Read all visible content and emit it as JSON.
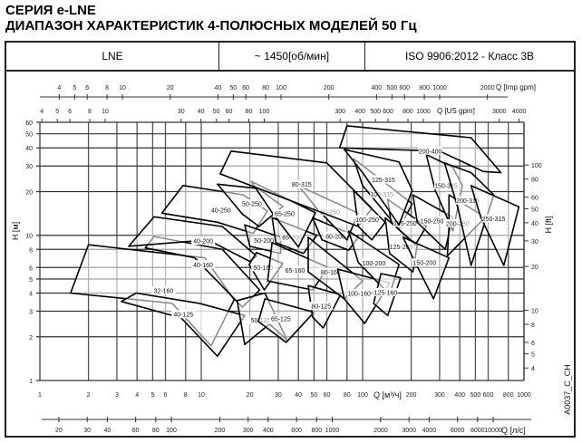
{
  "title_line1": "СЕРИЯ e-LNE",
  "title_line2": "ДИАПАЗОН ХАРАКТЕРИСТИК 4-ПОЛЮСНЫХ МОДЕЛЕЙ 50 Гц",
  "header": {
    "series": "LNE",
    "speed": "~ 1450[об/мин]",
    "standard": "ISO 9906:2012 - Класс 3B"
  },
  "chart_data": {
    "type": "area",
    "x_scale": "log",
    "y_scale": "log",
    "xlabel": "Q [м³/ч]",
    "ylabel": "H [м]",
    "y2label": "H [ft]",
    "xlim": [
      1,
      1000
    ],
    "ylim": [
      1,
      60
    ],
    "grid": true,
    "x_ticks": [
      1,
      2,
      3,
      4,
      5,
      6,
      8,
      10,
      20,
      30,
      40,
      50,
      60,
      80,
      100,
      200,
      300,
      400,
      500,
      600,
      800,
      1000
    ],
    "y_ticks": [
      1,
      2,
      3,
      4,
      5,
      6,
      8,
      10,
      20,
      30,
      40,
      50,
      60
    ],
    "y2_ticks": [
      4,
      5,
      6,
      8,
      10,
      20,
      30,
      40,
      50,
      60,
      80,
      100
    ],
    "top_axis_imp": {
      "label": "Q [Imp gpm]",
      "ticks": [
        4,
        5,
        6,
        8,
        10,
        20,
        40,
        50,
        60,
        80,
        100,
        200,
        400,
        500,
        600,
        800,
        1000,
        2000
      ]
    },
    "top_axis_us": {
      "label": "Q [US gpm]",
      "ticks": [
        4,
        5,
        6,
        8,
        10,
        30,
        40,
        50,
        60,
        80,
        100,
        300,
        400,
        500,
        600,
        800,
        1000,
        3000,
        4000
      ]
    },
    "bottom_axis_ls": {
      "label": "Q [л/с]",
      "ticks": [
        20,
        30,
        40,
        60,
        80,
        100,
        200,
        300,
        400,
        600,
        800,
        1000,
        2000,
        3000,
        4000,
        6000,
        8000,
        10000
      ]
    },
    "code": "A0037_C_CH",
    "models": [
      {
        "label": "32-160",
        "outline": [
          [
            2,
            8.6
          ],
          [
            10.5,
            7
          ],
          [
            16,
            3.6
          ],
          [
            11.5,
            1.73
          ],
          [
            6.6,
            3.4
          ],
          [
            1.55,
            4
          ]
        ]
      },
      {
        "label": "40-125",
        "outline": [
          [
            3.95,
            4
          ],
          [
            9.7,
            3.4
          ],
          [
            18.6,
            2.8
          ],
          [
            12.6,
            1.47
          ],
          [
            7.5,
            2.7
          ],
          [
            3.2,
            3.5
          ]
        ]
      },
      {
        "label": "40-160",
        "outline": [
          [
            5.1,
            9.8
          ],
          [
            13.5,
            8
          ],
          [
            23,
            4.2
          ],
          [
            18,
            3.2
          ],
          [
            9.1,
            7
          ],
          [
            4.5,
            8.2
          ]
        ]
      },
      {
        "label": "40-200",
        "outline": [
          [
            5.1,
            13.4
          ],
          [
            13.5,
            11.5
          ],
          [
            22,
            7.2
          ],
          [
            20,
            6.6
          ],
          [
            11,
            9.3
          ],
          [
            3.55,
            8.4
          ]
        ]
      },
      {
        "label": "40-250",
        "outline": [
          [
            7.7,
            22
          ],
          [
            18.2,
            19
          ],
          [
            25.7,
            14.7
          ],
          [
            21,
            10.3
          ],
          [
            12.6,
            12.3
          ],
          [
            5.7,
            14.2
          ]
        ]
      },
      {
        "label": "50-125",
        "outline": [
          [
            16.7,
            3.55
          ],
          [
            24.8,
            4
          ],
          [
            34,
            1.9
          ],
          [
            26.5,
            2.45
          ],
          [
            18.6,
            1.77
          ]
        ]
      },
      {
        "label": "50-160",
        "outline": [
          [
            22,
            7.6
          ],
          [
            32,
            6.4
          ],
          [
            24.6,
            4.2
          ],
          [
            19.8,
            6.3
          ]
        ]
      },
      {
        "label": "50-200",
        "outline": [
          [
            18.6,
            11.8
          ],
          [
            31,
            9.7
          ],
          [
            31,
            7.5
          ],
          [
            20,
            8.4
          ]
        ]
      },
      {
        "label": "50-250",
        "outline": [
          [
            12.6,
            22.5
          ],
          [
            22.5,
            21
          ],
          [
            32,
            15.8
          ],
          [
            22.8,
            11.5
          ],
          [
            18,
            14
          ]
        ]
      },
      {
        "label": "65-125",
        "outline": [
          [
            24.8,
            3.65
          ],
          [
            50,
            2.95
          ],
          [
            33.6,
            1.83
          ],
          [
            22.6,
            2.55
          ]
        ]
      },
      {
        "label": "65-160",
        "outline": [
          [
            27.5,
            8.9
          ],
          [
            61,
            6
          ],
          [
            49,
            4.2
          ],
          [
            25.8,
            4.85
          ]
        ]
      },
      {
        "label": "65-200",
        "outline": [
          [
            27.5,
            13.2
          ],
          [
            52,
            10
          ],
          [
            43,
            7.5
          ],
          [
            29,
            8.9
          ]
        ]
      },
      {
        "label": "65-250",
        "outline": [
          [
            20.4,
            23.5
          ],
          [
            51,
            14.3
          ],
          [
            40,
            8.3
          ],
          [
            28,
            13.9
          ]
        ]
      },
      {
        "label": "80-125",
        "outline": [
          [
            46,
            4.5
          ],
          [
            73,
            3.9
          ],
          [
            57,
            2.3
          ],
          [
            49,
            2.73
          ]
        ]
      },
      {
        "label": "80-160",
        "outline": [
          [
            46,
            9.7
          ],
          [
            100,
            4.85
          ],
          [
            77,
            3.65
          ],
          [
            46,
            5.6
          ]
        ]
      },
      {
        "label": "80-200",
        "outline": [
          [
            49,
            13.2
          ],
          [
            94,
            9.7
          ],
          [
            82,
            7.9
          ],
          [
            56,
            9.3
          ]
        ]
      },
      {
        "label": "80-250",
        "outline": [
          [
            40,
            22
          ],
          [
            94,
            14.2
          ],
          [
            80,
            9.3
          ],
          [
            52,
            15.3
          ]
        ]
      },
      {
        "label": "80-315",
        "outline": [
          [
            15.3,
            38
          ],
          [
            60,
            31.5
          ],
          [
            114,
            15.3
          ],
          [
            94,
            11.5
          ],
          [
            13.1,
            26.5
          ]
        ]
      },
      {
        "label": "100-160",
        "outline": [
          [
            70,
            5.85
          ],
          [
            147,
            4.7
          ],
          [
            103,
            2.47
          ],
          [
            77,
            3.65
          ]
        ]
      },
      {
        "label": "100-200",
        "outline": [
          [
            82,
            10.7
          ],
          [
            168,
            6.3
          ],
          [
            147,
            3.9
          ],
          [
            94,
            6.5
          ]
        ]
      },
      {
        "label": "100-250",
        "outline": [
          [
            88,
            20.3
          ],
          [
            138,
            12.3
          ],
          [
            114,
            9.3
          ],
          [
            94,
            11.5
          ]
        ]
      },
      {
        "label": "100-315",
        "outline": [
          [
            88,
            33.7
          ],
          [
            203,
            16.5
          ],
          [
            168,
            11
          ],
          [
            100,
            22
          ]
        ]
      },
      {
        "label": "125-160",
        "outline": [
          [
            130,
            5.45
          ],
          [
            172,
            5.1
          ],
          [
            143,
            2.8
          ],
          [
            117,
            3.4
          ]
        ]
      },
      {
        "label": "125-200",
        "outline": [
          [
            138,
            13.2
          ],
          [
            218,
            8.6
          ],
          [
            205,
            5.6
          ],
          [
            147,
            7.5
          ]
        ]
      },
      {
        "label": "125-250",
        "outline": [
          [
            143,
            17.7
          ],
          [
            248,
            11.5
          ],
          [
            212,
            8.6
          ],
          [
            150,
            12.3
          ]
        ]
      },
      {
        "label": "125-315",
        "outline": [
          [
            77,
            39
          ],
          [
            168,
            32
          ],
          [
            203,
            20.4
          ],
          [
            168,
            11.8
          ],
          [
            100,
            27
          ]
        ]
      },
      {
        "label": "150-200",
        "outline": [
          [
            178,
            9.7
          ],
          [
            343,
            7
          ],
          [
            275,
            3.65
          ],
          [
            205,
            7
          ]
        ]
      },
      {
        "label": "150-250",
        "outline": [
          [
            205,
            19
          ],
          [
            363,
            13.3
          ],
          [
            325,
            8
          ],
          [
            218,
            12.3
          ]
        ]
      },
      {
        "label": "150-315",
        "outline": [
          [
            248,
            36
          ],
          [
            363,
            29.3
          ],
          [
            415,
            22
          ],
          [
            363,
            10.7
          ],
          [
            282,
            20.4
          ]
        ]
      },
      {
        "label": "200-250",
        "outline": [
          [
            343,
            19
          ],
          [
            575,
            13.3
          ],
          [
            335,
            7.2
          ],
          [
            343,
            11.5
          ]
        ]
      },
      {
        "label": "200-315",
        "outline": [
          [
            322,
            31.5
          ],
          [
            470,
            27
          ],
          [
            650,
            19
          ],
          [
            470,
            6.2
          ],
          [
            390,
            15.3
          ]
        ]
      },
      {
        "label": "200-400",
        "outline": [
          [
            80,
            56.7
          ],
          [
            470,
            47
          ],
          [
            720,
            27
          ],
          [
            560,
            27.5
          ],
          [
            300,
            38
          ],
          [
            72,
            40
          ]
        ]
      },
      {
        "label": "250-315",
        "outline": [
          [
            470,
            22
          ],
          [
            930,
            15.7
          ],
          [
            750,
            6.2
          ],
          [
            540,
            13.3
          ]
        ]
      }
    ]
  }
}
